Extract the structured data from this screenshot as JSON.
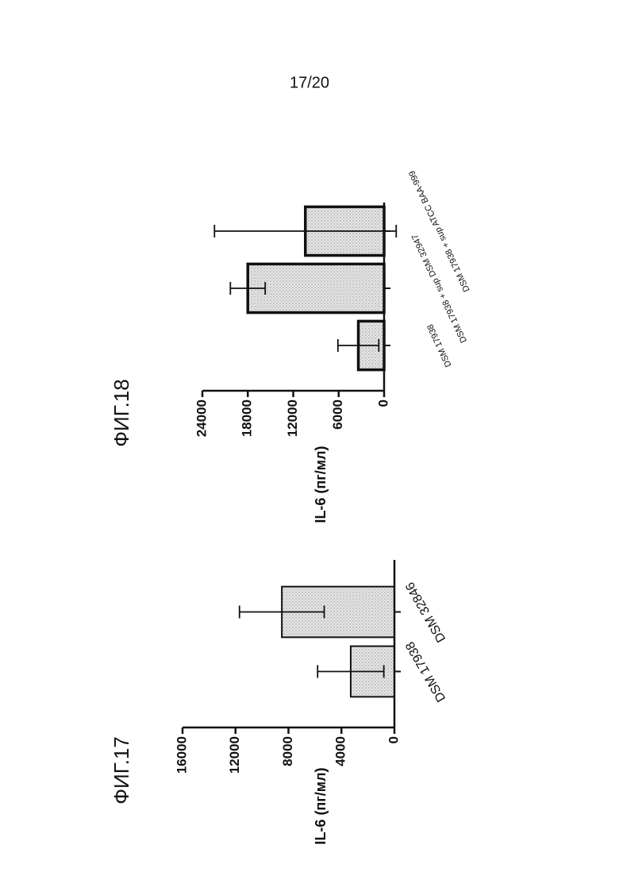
{
  "page_number": "17/20",
  "chart_data": [
    {
      "type": "bar",
      "title": "ФИГ.17",
      "ylabel": "IL-6 (пг/мл)",
      "categories": [
        "DSM 17938",
        "DSM 32846"
      ],
      "values": [
        3300,
        8500
      ],
      "errors": [
        2500,
        3200
      ],
      "color": "#dcdcdc",
      "ylim": [
        0,
        16000
      ],
      "yticks": [
        0,
        4000,
        8000,
        12000,
        16000
      ]
    },
    {
      "type": "bar",
      "title": "ФИГ.18",
      "ylabel": "IL-6 (пг/мл)",
      "categories": [
        "DSM 17938",
        "DSM 17938 + sup DSM 32947",
        "DSM 17938 + sup ATCC BAA-999"
      ],
      "values": [
        3400,
        18000,
        10400
      ],
      "errors": [
        2700,
        2300,
        12000
      ],
      "color": "#dcdcdc",
      "ylim": [
        0,
        24000
      ],
      "yticks": [
        0,
        6000,
        12000,
        18000,
        24000
      ]
    }
  ]
}
